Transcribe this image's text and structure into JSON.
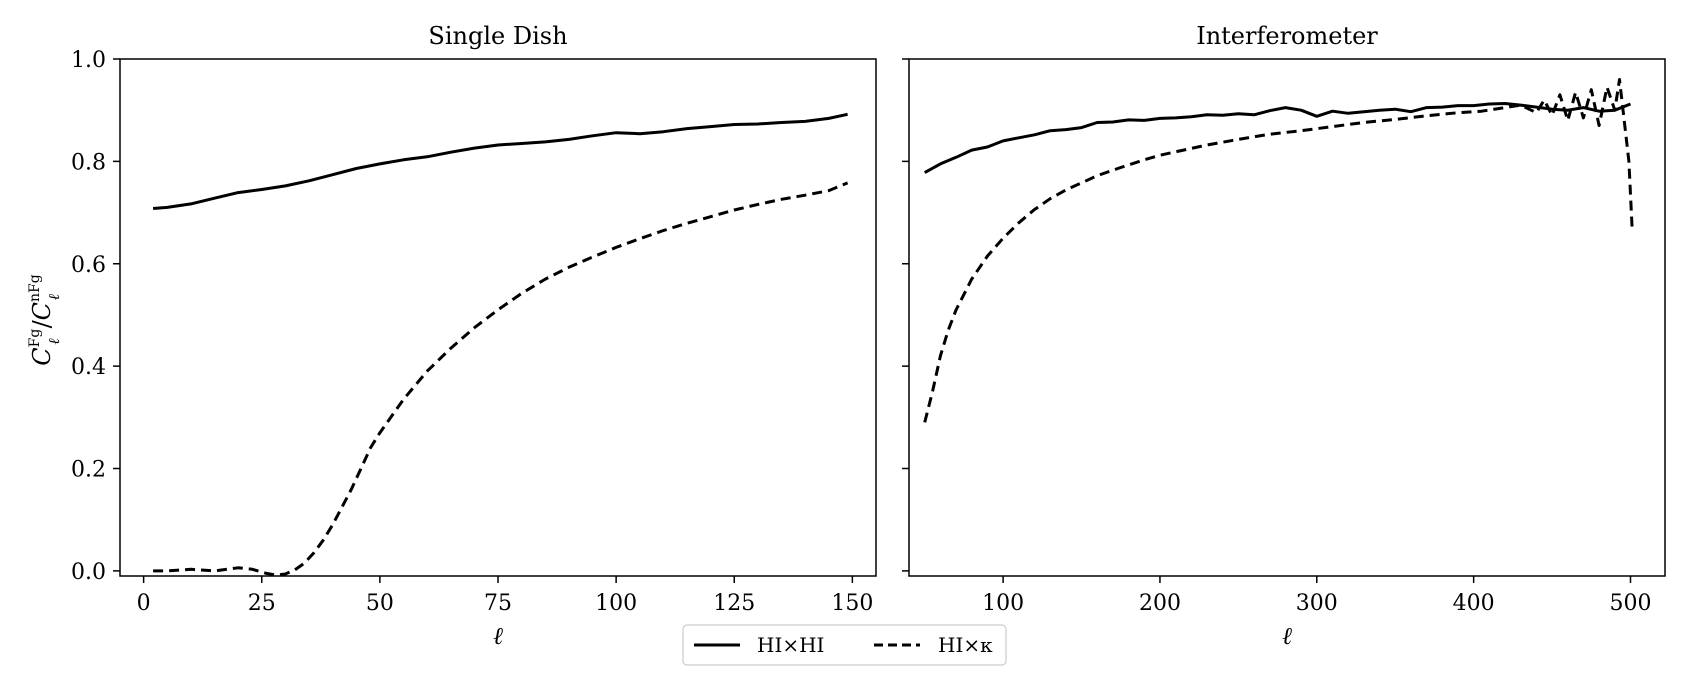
{
  "chart_data": [
    {
      "type": "line",
      "title": "Single Dish",
      "xlabel": "ℓ",
      "ylabel": "C_ℓ^Fg / C_ℓ^nFg",
      "ylabel_parts": {
        "sym": "C",
        "sup1": "Fg",
        "sub": "ℓ",
        "slash": "/",
        "sup2": "nFg"
      },
      "xlim": [
        -5,
        155
      ],
      "ylim": [
        -0.01,
        1.0
      ],
      "xticks": [
        "0",
        "25",
        "50",
        "75",
        "100",
        "125",
        "150"
      ],
      "yticks": [
        "0.0",
        "0.2",
        "0.4",
        "0.6",
        "0.8",
        "1.0"
      ],
      "series": [
        {
          "name": "HI×HI",
          "style": "solid",
          "x": [
            2,
            5,
            10,
            15,
            20,
            25,
            30,
            35,
            40,
            45,
            50,
            55,
            60,
            65,
            70,
            75,
            80,
            85,
            90,
            95,
            100,
            105,
            110,
            115,
            120,
            125,
            130,
            135,
            140,
            145,
            149
          ],
          "y": [
            0.708,
            0.71,
            0.717,
            0.728,
            0.739,
            0.745,
            0.752,
            0.762,
            0.774,
            0.786,
            0.795,
            0.803,
            0.809,
            0.818,
            0.826,
            0.832,
            0.835,
            0.838,
            0.843,
            0.85,
            0.856,
            0.854,
            0.858,
            0.864,
            0.868,
            0.872,
            0.873,
            0.876,
            0.878,
            0.884,
            0.892
          ]
        },
        {
          "name": "HI×κ",
          "style": "dashed",
          "x": [
            2,
            5,
            10,
            15,
            20,
            23,
            26,
            28,
            30,
            32,
            34,
            36,
            38,
            40,
            42,
            44,
            46,
            48,
            50,
            55,
            60,
            65,
            70,
            75,
            80,
            85,
            90,
            95,
            100,
            105,
            110,
            115,
            120,
            125,
            130,
            135,
            140,
            145,
            149
          ],
          "y": [
            0.0,
            0.0,
            0.003,
            0.0,
            0.006,
            0.003,
            -0.005,
            -0.008,
            -0.006,
            0.002,
            0.015,
            0.035,
            0.06,
            0.09,
            0.125,
            0.16,
            0.2,
            0.24,
            0.27,
            0.335,
            0.39,
            0.435,
            0.475,
            0.51,
            0.542,
            0.57,
            0.593,
            0.613,
            0.632,
            0.649,
            0.665,
            0.679,
            0.692,
            0.705,
            0.716,
            0.726,
            0.734,
            0.743,
            0.758
          ]
        }
      ]
    },
    {
      "type": "line",
      "title": "Interferometer",
      "xlabel": "ℓ",
      "ylabel": "",
      "xlim": [
        40,
        522
      ],
      "ylim": [
        -0.01,
        1.0
      ],
      "xticks": [
        "100",
        "200",
        "300",
        "400",
        "500"
      ],
      "yticks": [
        "0.0",
        "0.2",
        "0.4",
        "0.6",
        "0.8",
        "1.0"
      ],
      "series": [
        {
          "name": "HI×HI",
          "style": "solid",
          "x": [
            50,
            60,
            70,
            80,
            90,
            100,
            110,
            120,
            130,
            140,
            150,
            160,
            170,
            180,
            190,
            200,
            210,
            220,
            230,
            240,
            250,
            260,
            270,
            280,
            290,
            300,
            310,
            320,
            330,
            340,
            350,
            360,
            370,
            380,
            390,
            400,
            410,
            420,
            430,
            440,
            450,
            460,
            470,
            480,
            490,
            500
          ],
          "y": [
            0.778,
            0.795,
            0.808,
            0.822,
            0.828,
            0.84,
            0.846,
            0.852,
            0.86,
            0.862,
            0.866,
            0.876,
            0.877,
            0.881,
            0.88,
            0.884,
            0.885,
            0.887,
            0.891,
            0.89,
            0.893,
            0.891,
            0.899,
            0.905,
            0.9,
            0.888,
            0.898,
            0.894,
            0.897,
            0.9,
            0.902,
            0.897,
            0.905,
            0.906,
            0.909,
            0.909,
            0.912,
            0.913,
            0.91,
            0.906,
            0.902,
            0.9,
            0.905,
            0.898,
            0.9,
            0.912
          ]
        },
        {
          "name": "HI×κ",
          "style": "dashed",
          "x": [
            50,
            55,
            60,
            65,
            70,
            80,
            90,
            100,
            110,
            120,
            130,
            140,
            150,
            160,
            175,
            190,
            200,
            215,
            230,
            250,
            270,
            290,
            310,
            330,
            350,
            370,
            390,
            405,
            420,
            430,
            440,
            445,
            450,
            455,
            460,
            465,
            470,
            475,
            480,
            485,
            490,
            493,
            496,
            499,
            501
          ],
          "y": [
            0.29,
            0.35,
            0.42,
            0.47,
            0.51,
            0.57,
            0.615,
            0.65,
            0.68,
            0.706,
            0.727,
            0.744,
            0.758,
            0.772,
            0.788,
            0.803,
            0.812,
            0.822,
            0.832,
            0.843,
            0.853,
            0.86,
            0.868,
            0.876,
            0.882,
            0.889,
            0.895,
            0.898,
            0.905,
            0.91,
            0.895,
            0.92,
            0.89,
            0.93,
            0.88,
            0.935,
            0.885,
            0.94,
            0.87,
            0.945,
            0.9,
            0.96,
            0.88,
            0.8,
            0.67
          ]
        }
      ]
    }
  ],
  "legend": {
    "placement": "bottom-center",
    "entries": [
      {
        "label": "HI×HI",
        "style": "solid"
      },
      {
        "label": "HI×κ",
        "style": "dashed"
      }
    ]
  }
}
